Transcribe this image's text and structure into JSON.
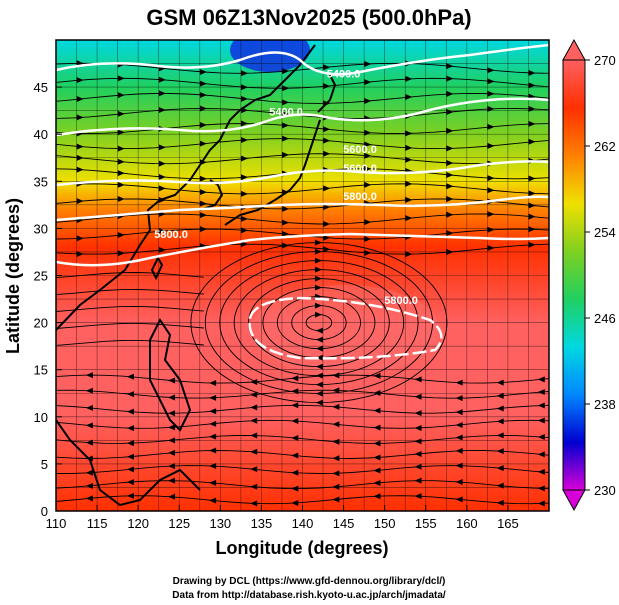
{
  "chart_data": {
    "type": "heatmap",
    "title": "GSM 06Z13Nov2025 (500.0hPa)",
    "xlabel": "Longitude (degrees)",
    "ylabel": "Latitude  (degrees)",
    "xlim": [
      110,
      170
    ],
    "ylim": [
      0,
      50
    ],
    "xticks": [
      110,
      115,
      120,
      125,
      130,
      135,
      140,
      145,
      150,
      155,
      160,
      165
    ],
    "yticks": [
      0,
      5,
      10,
      15,
      20,
      25,
      30,
      35,
      40,
      45
    ],
    "colorbar": {
      "min": 230,
      "max": 270,
      "ticks": [
        230,
        238,
        246,
        254,
        262,
        270
      ],
      "colors": [
        "#d800d8",
        "#0000d0",
        "#0088ff",
        "#00d8e0",
        "#20d060",
        "#80d020",
        "#f0e000",
        "#ff8000",
        "#ff3000",
        "#ff6060"
      ]
    },
    "temperature_rows": [
      {
        "lat": 50,
        "value": 244
      },
      {
        "lat": 45,
        "value": 247
      },
      {
        "lat": 40,
        "value": 251
      },
      {
        "lat": 35,
        "value": 256
      },
      {
        "lat": 32,
        "value": 261
      },
      {
        "lat": 28,
        "value": 265
      },
      {
        "lat": 20,
        "value": 268
      },
      {
        "lat": 10,
        "value": 268
      },
      {
        "lat": 0,
        "value": 266
      }
    ],
    "contour_labels": [
      {
        "text": "5400.0",
        "lon": 145,
        "lat": 46
      },
      {
        "text": "5400.0",
        "lon": 138,
        "lat": 42
      },
      {
        "text": "5600.0",
        "lon": 147,
        "lat": 38
      },
      {
        "text": "5600.0",
        "lon": 147,
        "lat": 36
      },
      {
        "text": "5800.0",
        "lon": 147,
        "lat": 33
      },
      {
        "text": "5800.0",
        "lon": 124,
        "lat": 29
      },
      {
        "text": "5800.0",
        "lon": 152,
        "lat": 22
      }
    ]
  },
  "credits": {
    "line1": "Drawing by DCL (https://www.gfd-dennou.org/library/dcl/)",
    "line2": "Data from http://database.rish.kyoto-u.ac.jp/arch/jmadata/"
  }
}
